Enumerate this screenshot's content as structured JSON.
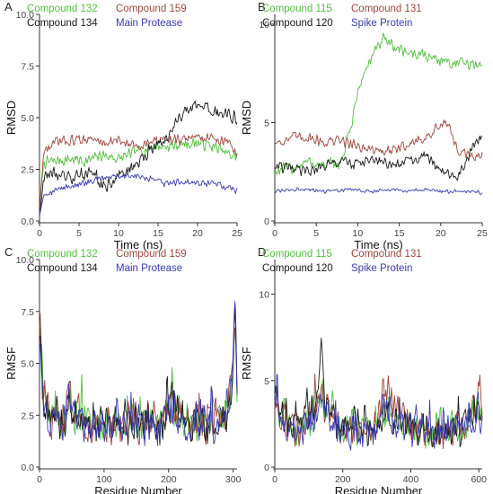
{
  "chart_data": [
    {
      "panel": "A",
      "type": "line",
      "xlabel": "Time (ns)",
      "ylabel": "RMSD",
      "xlim": [
        0,
        25
      ],
      "ylim": [
        0,
        10
      ],
      "xticks": [
        0,
        5,
        10,
        15,
        20,
        25
      ],
      "yticks": [
        0,
        2.5,
        5,
        7.5,
        10
      ],
      "ytick_labels": [
        "0.0",
        "2.5",
        "5.0",
        "7.5",
        "10.0"
      ],
      "legend_placement": "top-left",
      "series": [
        {
          "name": "Compound 132",
          "color": "#4fc13a",
          "noise": 0.35,
          "x": [
            0,
            0.5,
            2,
            4,
            6,
            8,
            10,
            12,
            14,
            16,
            18,
            20,
            22,
            24,
            25
          ],
          "y": [
            0.3,
            2.8,
            2.9,
            3.0,
            2.9,
            3.2,
            3.0,
            3.3,
            3.6,
            3.6,
            3.7,
            3.8,
            3.6,
            3.2,
            3.1
          ]
        },
        {
          "name": "Compound 159",
          "color": "#a0453a",
          "noise": 0.3,
          "x": [
            0,
            0.5,
            2,
            4,
            6,
            8,
            10,
            12,
            14,
            16,
            18,
            20,
            22,
            24,
            25
          ],
          "y": [
            0.3,
            3.3,
            3.8,
            3.9,
            4.0,
            3.8,
            3.9,
            3.6,
            3.8,
            4.0,
            3.9,
            4.1,
            4.0,
            3.8,
            3.2
          ]
        },
        {
          "name": "Compound 134",
          "color": "#1a1a1a",
          "noise": 0.4,
          "x": [
            0,
            0.5,
            2,
            4,
            6,
            7,
            8,
            9,
            10,
            12,
            14,
            16,
            18,
            20,
            22,
            24,
            25
          ],
          "y": [
            0.3,
            2.2,
            2.3,
            2.0,
            2.4,
            2.3,
            1.6,
            1.8,
            2.2,
            2.6,
            3.5,
            3.9,
            5.2,
            5.5,
            5.3,
            5.1,
            5.0
          ]
        },
        {
          "name": "Main Protease",
          "color": "#3a3ab8",
          "noise": 0.2,
          "x": [
            0,
            0.5,
            2,
            4,
            6,
            8,
            10,
            12,
            14,
            16,
            18,
            20,
            22,
            24,
            25
          ],
          "y": [
            0.3,
            1.3,
            1.5,
            1.7,
            1.8,
            2.1,
            2.2,
            2.2,
            2.0,
            1.8,
            1.9,
            1.8,
            1.8,
            1.6,
            1.5
          ]
        }
      ]
    },
    {
      "panel": "B",
      "type": "line",
      "xlabel": "Time (ns)",
      "ylabel": "RMSD",
      "xlim": [
        0,
        25
      ],
      "ylim": [
        0,
        10.5
      ],
      "xticks": [
        0,
        5,
        10,
        15,
        20,
        25
      ],
      "yticks": [
        0,
        5,
        10
      ],
      "ytick_labels": [
        "0",
        "5",
        "10"
      ],
      "legend_placement": "top-left",
      "series": [
        {
          "name": "Compound 115",
          "color": "#4fc13a",
          "noise": 0.4,
          "x": [
            0,
            2,
            4,
            6,
            8,
            9,
            10,
            11,
            12,
            13,
            14,
            16,
            18,
            20,
            22,
            24,
            25
          ],
          "y": [
            2.5,
            2.7,
            3.0,
            2.8,
            3.0,
            4.5,
            6.5,
            7.8,
            8.5,
            9.2,
            8.9,
            8.6,
            8.4,
            8.2,
            8.0,
            7.9,
            8.0
          ]
        },
        {
          "name": "Compound 131",
          "color": "#a0453a",
          "noise": 0.35,
          "x": [
            0,
            2,
            4,
            6,
            8,
            10,
            12,
            14,
            16,
            18,
            20,
            21,
            22,
            24,
            25
          ],
          "y": [
            4.0,
            4.2,
            4.3,
            4.0,
            4.1,
            3.8,
            3.6,
            3.5,
            3.9,
            4.2,
            4.8,
            5.0,
            3.5,
            3.2,
            3.5
          ]
        },
        {
          "name": "Compound 120",
          "color": "#1a1a1a",
          "noise": 0.35,
          "x": [
            0,
            2,
            4,
            6,
            8,
            10,
            12,
            14,
            16,
            18,
            20,
            22,
            24,
            25
          ],
          "y": [
            2.8,
            2.6,
            2.5,
            2.8,
            3.0,
            2.9,
            3.1,
            2.8,
            3.0,
            3.3,
            2.7,
            2.2,
            3.8,
            4.3
          ]
        },
        {
          "name": "Spike Protein",
          "color": "#3a3ab8",
          "noise": 0.12,
          "x": [
            0,
            2,
            4,
            6,
            8,
            10,
            12,
            14,
            16,
            18,
            20,
            22,
            24,
            25
          ],
          "y": [
            1.5,
            1.6,
            1.6,
            1.5,
            1.6,
            1.6,
            1.5,
            1.6,
            1.5,
            1.6,
            1.5,
            1.5,
            1.5,
            1.4
          ]
        }
      ]
    },
    {
      "panel": "C",
      "type": "line",
      "xlabel": "Residue Number",
      "ylabel": "RMSF",
      "xlim": [
        0,
        306
      ],
      "ylim": [
        0,
        10
      ],
      "xticks": [
        0,
        100,
        200,
        300
      ],
      "yticks": [
        0,
        2.5,
        5,
        7.5,
        10
      ],
      "ytick_labels": [
        "0.0",
        "2.5",
        "5.0",
        "7.5",
        "10.0"
      ],
      "legend_placement": "top-left",
      "series": [
        {
          "name": "Compound 132",
          "color": "#4fc13a",
          "noise": 1.0,
          "x": [
            1,
            5,
            15,
            40,
            45,
            50,
            80,
            100,
            150,
            190,
            200,
            220,
            270,
            290,
            300,
            303,
            306
          ],
          "y": [
            7.0,
            3.5,
            2.4,
            2.1,
            3.5,
            2.5,
            2.0,
            2.0,
            2.1,
            2.0,
            3.0,
            2.0,
            2.2,
            2.5,
            4.5,
            7.0,
            4.0
          ]
        },
        {
          "name": "Compound 159",
          "color": "#a0453a",
          "noise": 1.0,
          "x": [
            1,
            5,
            15,
            40,
            45,
            50,
            80,
            100,
            150,
            190,
            200,
            220,
            270,
            290,
            300,
            303,
            306
          ],
          "y": [
            7.6,
            3.4,
            2.3,
            2.0,
            3.8,
            2.5,
            2.0,
            2.0,
            2.0,
            2.0,
            3.2,
            2.0,
            2.1,
            2.6,
            4.8,
            7.5,
            4.2
          ]
        },
        {
          "name": "Compound 134",
          "color": "#1a1a1a",
          "noise": 1.0,
          "x": [
            1,
            5,
            15,
            40,
            45,
            50,
            80,
            100,
            150,
            190,
            200,
            220,
            270,
            290,
            300,
            303,
            306
          ],
          "y": [
            6.5,
            3.2,
            2.2,
            2.0,
            3.4,
            2.4,
            1.9,
            1.9,
            2.0,
            1.9,
            2.9,
            1.9,
            2.0,
            2.4,
            4.6,
            7.8,
            4.0
          ]
        },
        {
          "name": "Main Protease",
          "color": "#3a3ab8",
          "noise": 1.0,
          "x": [
            1,
            5,
            15,
            40,
            45,
            50,
            80,
            100,
            150,
            190,
            200,
            220,
            270,
            290,
            300,
            303,
            306
          ],
          "y": [
            6.0,
            3.3,
            2.2,
            2.0,
            3.3,
            2.4,
            1.9,
            1.9,
            2.0,
            1.9,
            2.8,
            1.9,
            2.0,
            2.3,
            4.4,
            8.4,
            4.2
          ]
        }
      ]
    },
    {
      "panel": "D",
      "type": "line",
      "xlabel": "Residue Number",
      "ylabel": "RMSF",
      "xlim": [
        0,
        610
      ],
      "ylim": [
        0,
        12
      ],
      "xticks": [
        0,
        200,
        400,
        600
      ],
      "yticks": [
        0,
        5,
        10
      ],
      "ytick_labels": [
        "0",
        "5",
        "10"
      ],
      "legend_placement": "top-left",
      "series": [
        {
          "name": "Compound 115",
          "color": "#4fc13a",
          "noise": 1.1,
          "x": [
            1,
            20,
            50,
            100,
            130,
            140,
            150,
            200,
            300,
            320,
            400,
            450,
            500,
            550,
            600,
            610
          ],
          "y": [
            4.0,
            3.0,
            2.2,
            2.3,
            3.5,
            4.5,
            3.0,
            2.0,
            2.2,
            3.0,
            2.0,
            2.1,
            2.0,
            2.2,
            3.5,
            2.5
          ]
        },
        {
          "name": "Compound 131",
          "color": "#a0453a",
          "noise": 1.1,
          "x": [
            1,
            20,
            50,
            100,
            130,
            140,
            150,
            200,
            300,
            320,
            400,
            450,
            500,
            550,
            600,
            610
          ],
          "y": [
            4.2,
            3.0,
            2.2,
            2.4,
            3.8,
            4.6,
            3.0,
            2.0,
            2.5,
            4.5,
            2.0,
            2.1,
            2.0,
            2.2,
            4.0,
            2.5
          ]
        },
        {
          "name": "Compound 120",
          "color": "#1a1a1a",
          "noise": 1.1,
          "x": [
            1,
            20,
            50,
            100,
            130,
            140,
            150,
            200,
            300,
            320,
            400,
            450,
            500,
            550,
            600,
            610
          ],
          "y": [
            4.0,
            3.1,
            2.3,
            2.6,
            5.0,
            6.5,
            3.5,
            2.1,
            2.2,
            3.0,
            2.0,
            2.0,
            2.0,
            2.1,
            3.2,
            2.4
          ]
        },
        {
          "name": "Spike Protein",
          "color": "#3a3ab8",
          "noise": 1.1,
          "x": [
            1,
            20,
            50,
            100,
            130,
            140,
            150,
            200,
            300,
            320,
            400,
            450,
            500,
            550,
            600,
            610
          ],
          "y": [
            3.8,
            2.9,
            2.1,
            2.2,
            3.4,
            4.2,
            2.9,
            1.9,
            2.1,
            2.9,
            1.9,
            2.0,
            1.9,
            2.1,
            3.3,
            2.3
          ]
        }
      ]
    }
  ]
}
